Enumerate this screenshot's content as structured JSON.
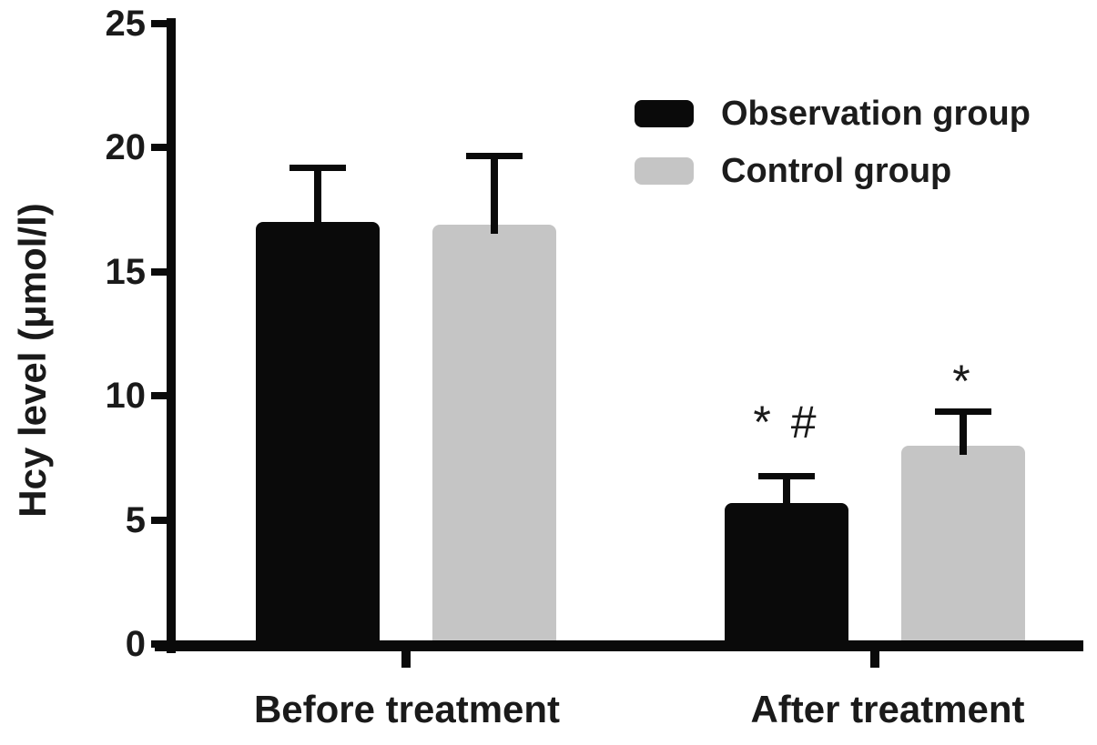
{
  "chart_data": {
    "type": "bar",
    "title": "",
    "xlabel": "",
    "ylabel": "Hcy level (μmol/l)",
    "categories": [
      "Before treatment",
      "After treatment"
    ],
    "series": [
      {
        "name": "Observation group",
        "color": "#0a0a0a",
        "values": [
          17.0,
          5.7
        ],
        "errors": [
          2.3,
          1.2
        ]
      },
      {
        "name": "Control group",
        "color": "#c5c5c5",
        "values": [
          16.9,
          8.0
        ],
        "errors": [
          2.9,
          1.5
        ]
      }
    ],
    "ylim": [
      0,
      25
    ],
    "yticks": [
      0,
      5,
      10,
      15,
      20,
      25
    ],
    "grid": false,
    "legend_position": "top-right",
    "error_bars": "sd-upper-only",
    "background_color": "#ffffff",
    "axis_color": "#0a0a0a",
    "annotations": [
      {
        "text": "* #",
        "series_index": 0,
        "category_index": 1,
        "offset_y": -56
      },
      {
        "text": "*",
        "series_index": 1,
        "category_index": 1,
        "offset_y": -30
      }
    ]
  }
}
